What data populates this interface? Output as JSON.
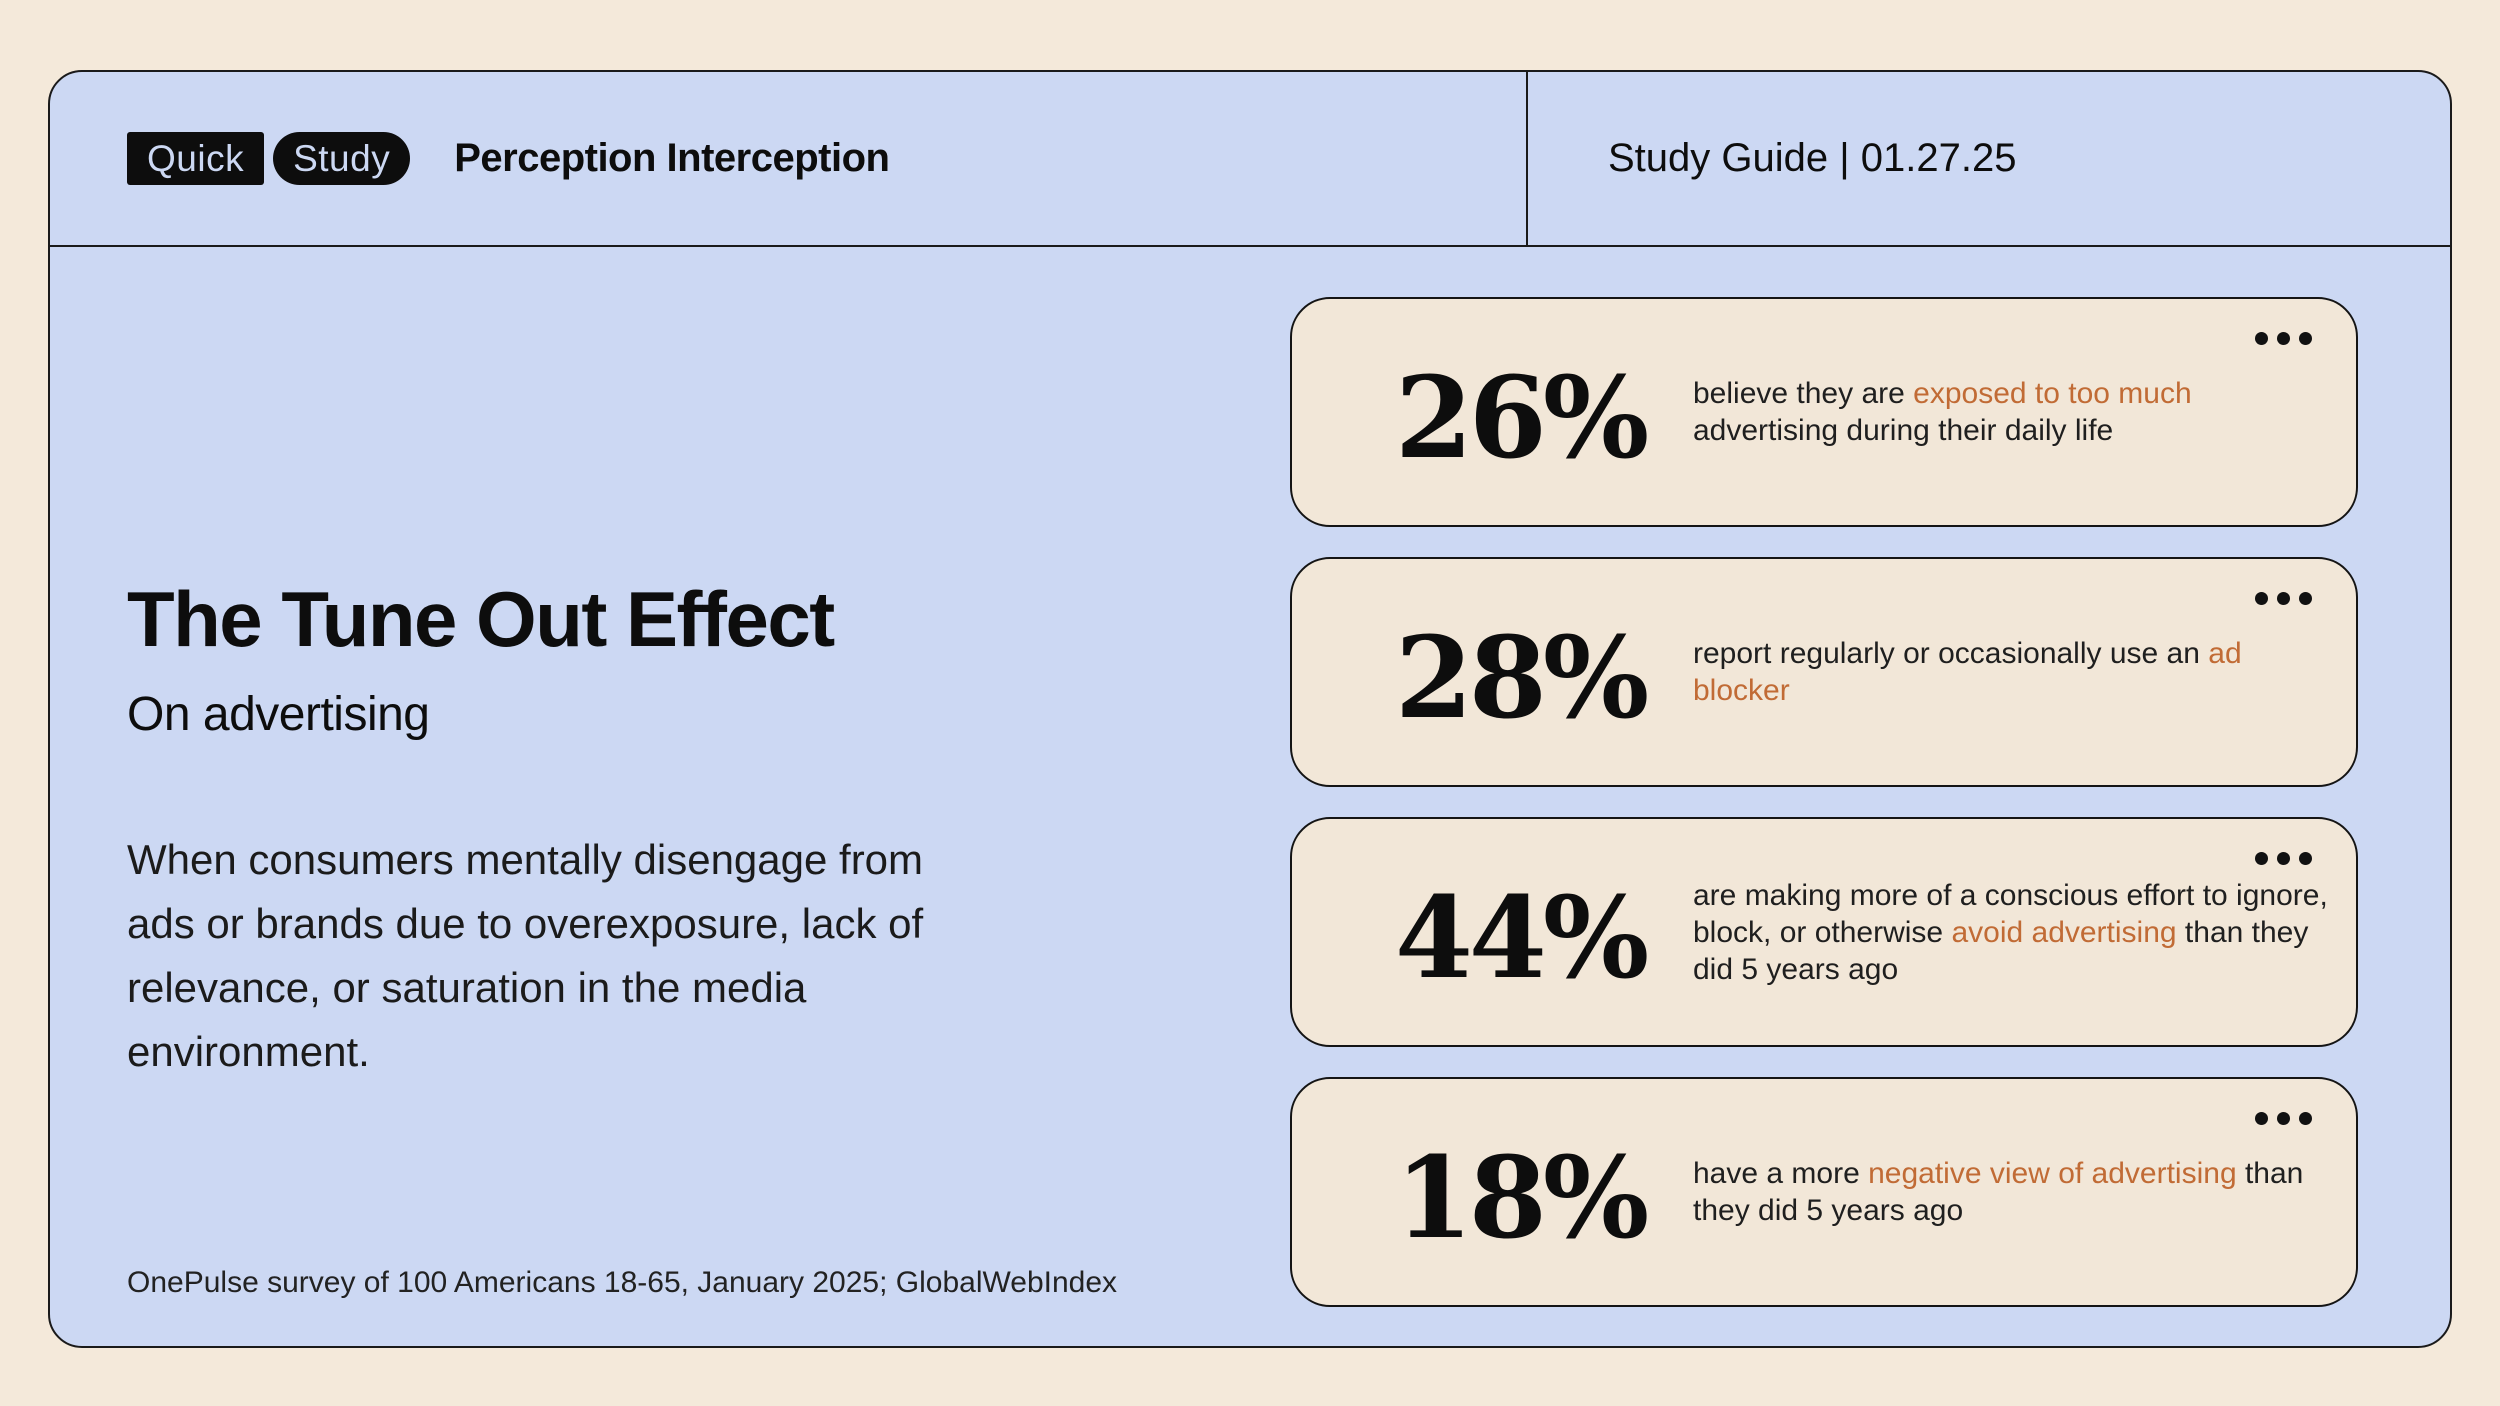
{
  "colors": {
    "background": "#f4e9da",
    "panel": "#ccd8f3",
    "card": "#f2e7d8",
    "accent": "#c16b35",
    "ink": "#141414"
  },
  "header": {
    "logo": {
      "word1": "Quick",
      "word2": "Study"
    },
    "topic": "Perception Interception",
    "meta": "Study Guide | 01.27.25"
  },
  "intro": {
    "title": "The Tune Out Effect",
    "subtitle": "On advertising",
    "definition": "When consumers mentally disengage from ads or brands due to overexposure, lack of relevance, or saturation in the media environment.",
    "source": "OnePulse survey of 100 Americans 18-65, January 2025; GlobalWebIndex"
  },
  "icons": {
    "card_menu": "ellipsis-dots"
  },
  "stats": [
    {
      "value": "26%",
      "pre": "believe they are ",
      "highlight": "exposed to too much",
      "post": " advertising during their daily life"
    },
    {
      "value": "28%",
      "pre": "report regularly or occasionally use an ",
      "highlight": "ad blocker",
      "post": ""
    },
    {
      "value": "44%",
      "pre": "are making more of a conscious effort to ignore, block, or otherwise ",
      "highlight": "avoid advertising",
      "post": " than they did 5 years ago"
    },
    {
      "value": "18%",
      "pre": "have a more ",
      "highlight": "negative view of advertising",
      "post": " than they did 5 years ago"
    }
  ]
}
